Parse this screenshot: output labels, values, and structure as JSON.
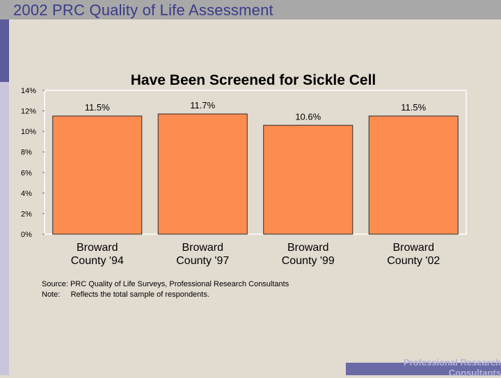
{
  "header": {
    "title": "2002 PRC Quality of Life Assessment"
  },
  "footer": {
    "text_line1": "Professional Research",
    "text_line2": "Consultants"
  },
  "colors": {
    "bar": "#fd8c50",
    "bar_outline": "#2a2a2a",
    "header": "#a8a8a8",
    "header_text": "#3a3a8c"
  },
  "chart_data": {
    "type": "bar",
    "title": "Have Been Screened for Sickle Cell",
    "categories": [
      [
        "Broward",
        "County '94"
      ],
      [
        "Broward",
        "County '97"
      ],
      [
        "Broward",
        "County '99"
      ],
      [
        "Broward",
        "County '02"
      ]
    ],
    "values": [
      11.5,
      11.7,
      10.6,
      11.5
    ],
    "data_labels": [
      "11.5%",
      "11.7%",
      "10.6%",
      "11.5%"
    ],
    "ylim": [
      0,
      14
    ],
    "yticks": [
      0,
      2,
      4,
      6,
      8,
      10,
      12,
      14
    ],
    "ytick_labels": [
      "0%",
      "2%",
      "4%",
      "6%",
      "8%",
      "10%",
      "12%",
      "14%"
    ],
    "grid": false,
    "notes": [
      "Source: PRC Quality of Life Surveys, Professional Research Consultants",
      "Note:     Reflects the total sample of respondents."
    ]
  }
}
